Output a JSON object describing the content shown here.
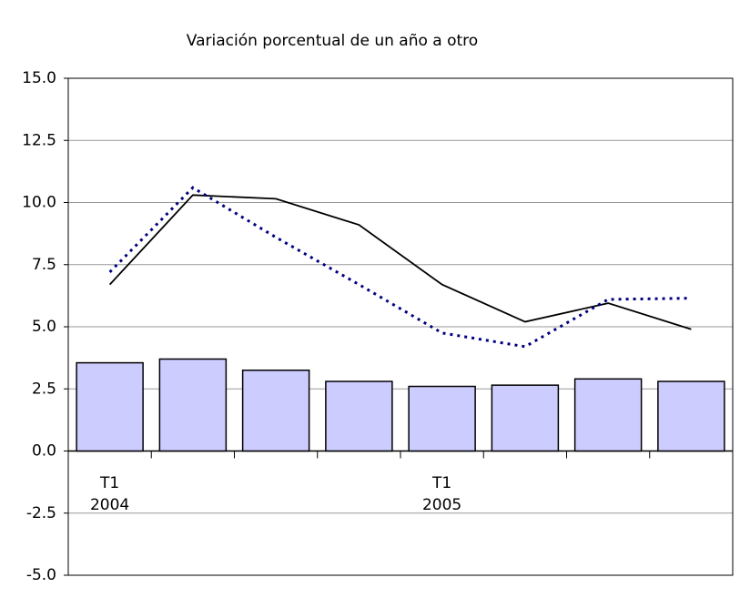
{
  "chart_data": {
    "type": "bar",
    "title": "Variación porcentual de un año a otro",
    "categories": [
      "T1\n2004",
      null,
      null,
      null,
      "T1\n2005",
      null,
      null,
      null
    ],
    "series": [
      {
        "type": "bar",
        "color": "#ccccff",
        "values": [
          3.55,
          3.7,
          3.25,
          2.8,
          2.6,
          2.65,
          2.9,
          2.8
        ]
      },
      {
        "type": "line",
        "color": "#000000",
        "style": "solid",
        "values": [
          6.7,
          10.3,
          10.15,
          9.1,
          6.7,
          5.2,
          5.95,
          4.9
        ]
      },
      {
        "type": "line",
        "color": "#000080",
        "style": "dotted",
        "values": [
          7.2,
          10.6,
          8.6,
          6.7,
          4.75,
          4.2,
          6.1,
          6.15
        ]
      }
    ],
    "ylim": [
      -5,
      15
    ],
    "yticks": [
      {
        "value": -5,
        "label": "-5.0"
      },
      -2.5,
      {
        "value": 0,
        "label": "0.0"
      },
      2.5,
      {
        "value": 5,
        "label": "5.0"
      },
      7.5,
      {
        "value": 10,
        "label": "10.0"
      },
      12.5,
      {
        "value": 15,
        "label": "15.0"
      }
    ],
    "grid": true
  }
}
